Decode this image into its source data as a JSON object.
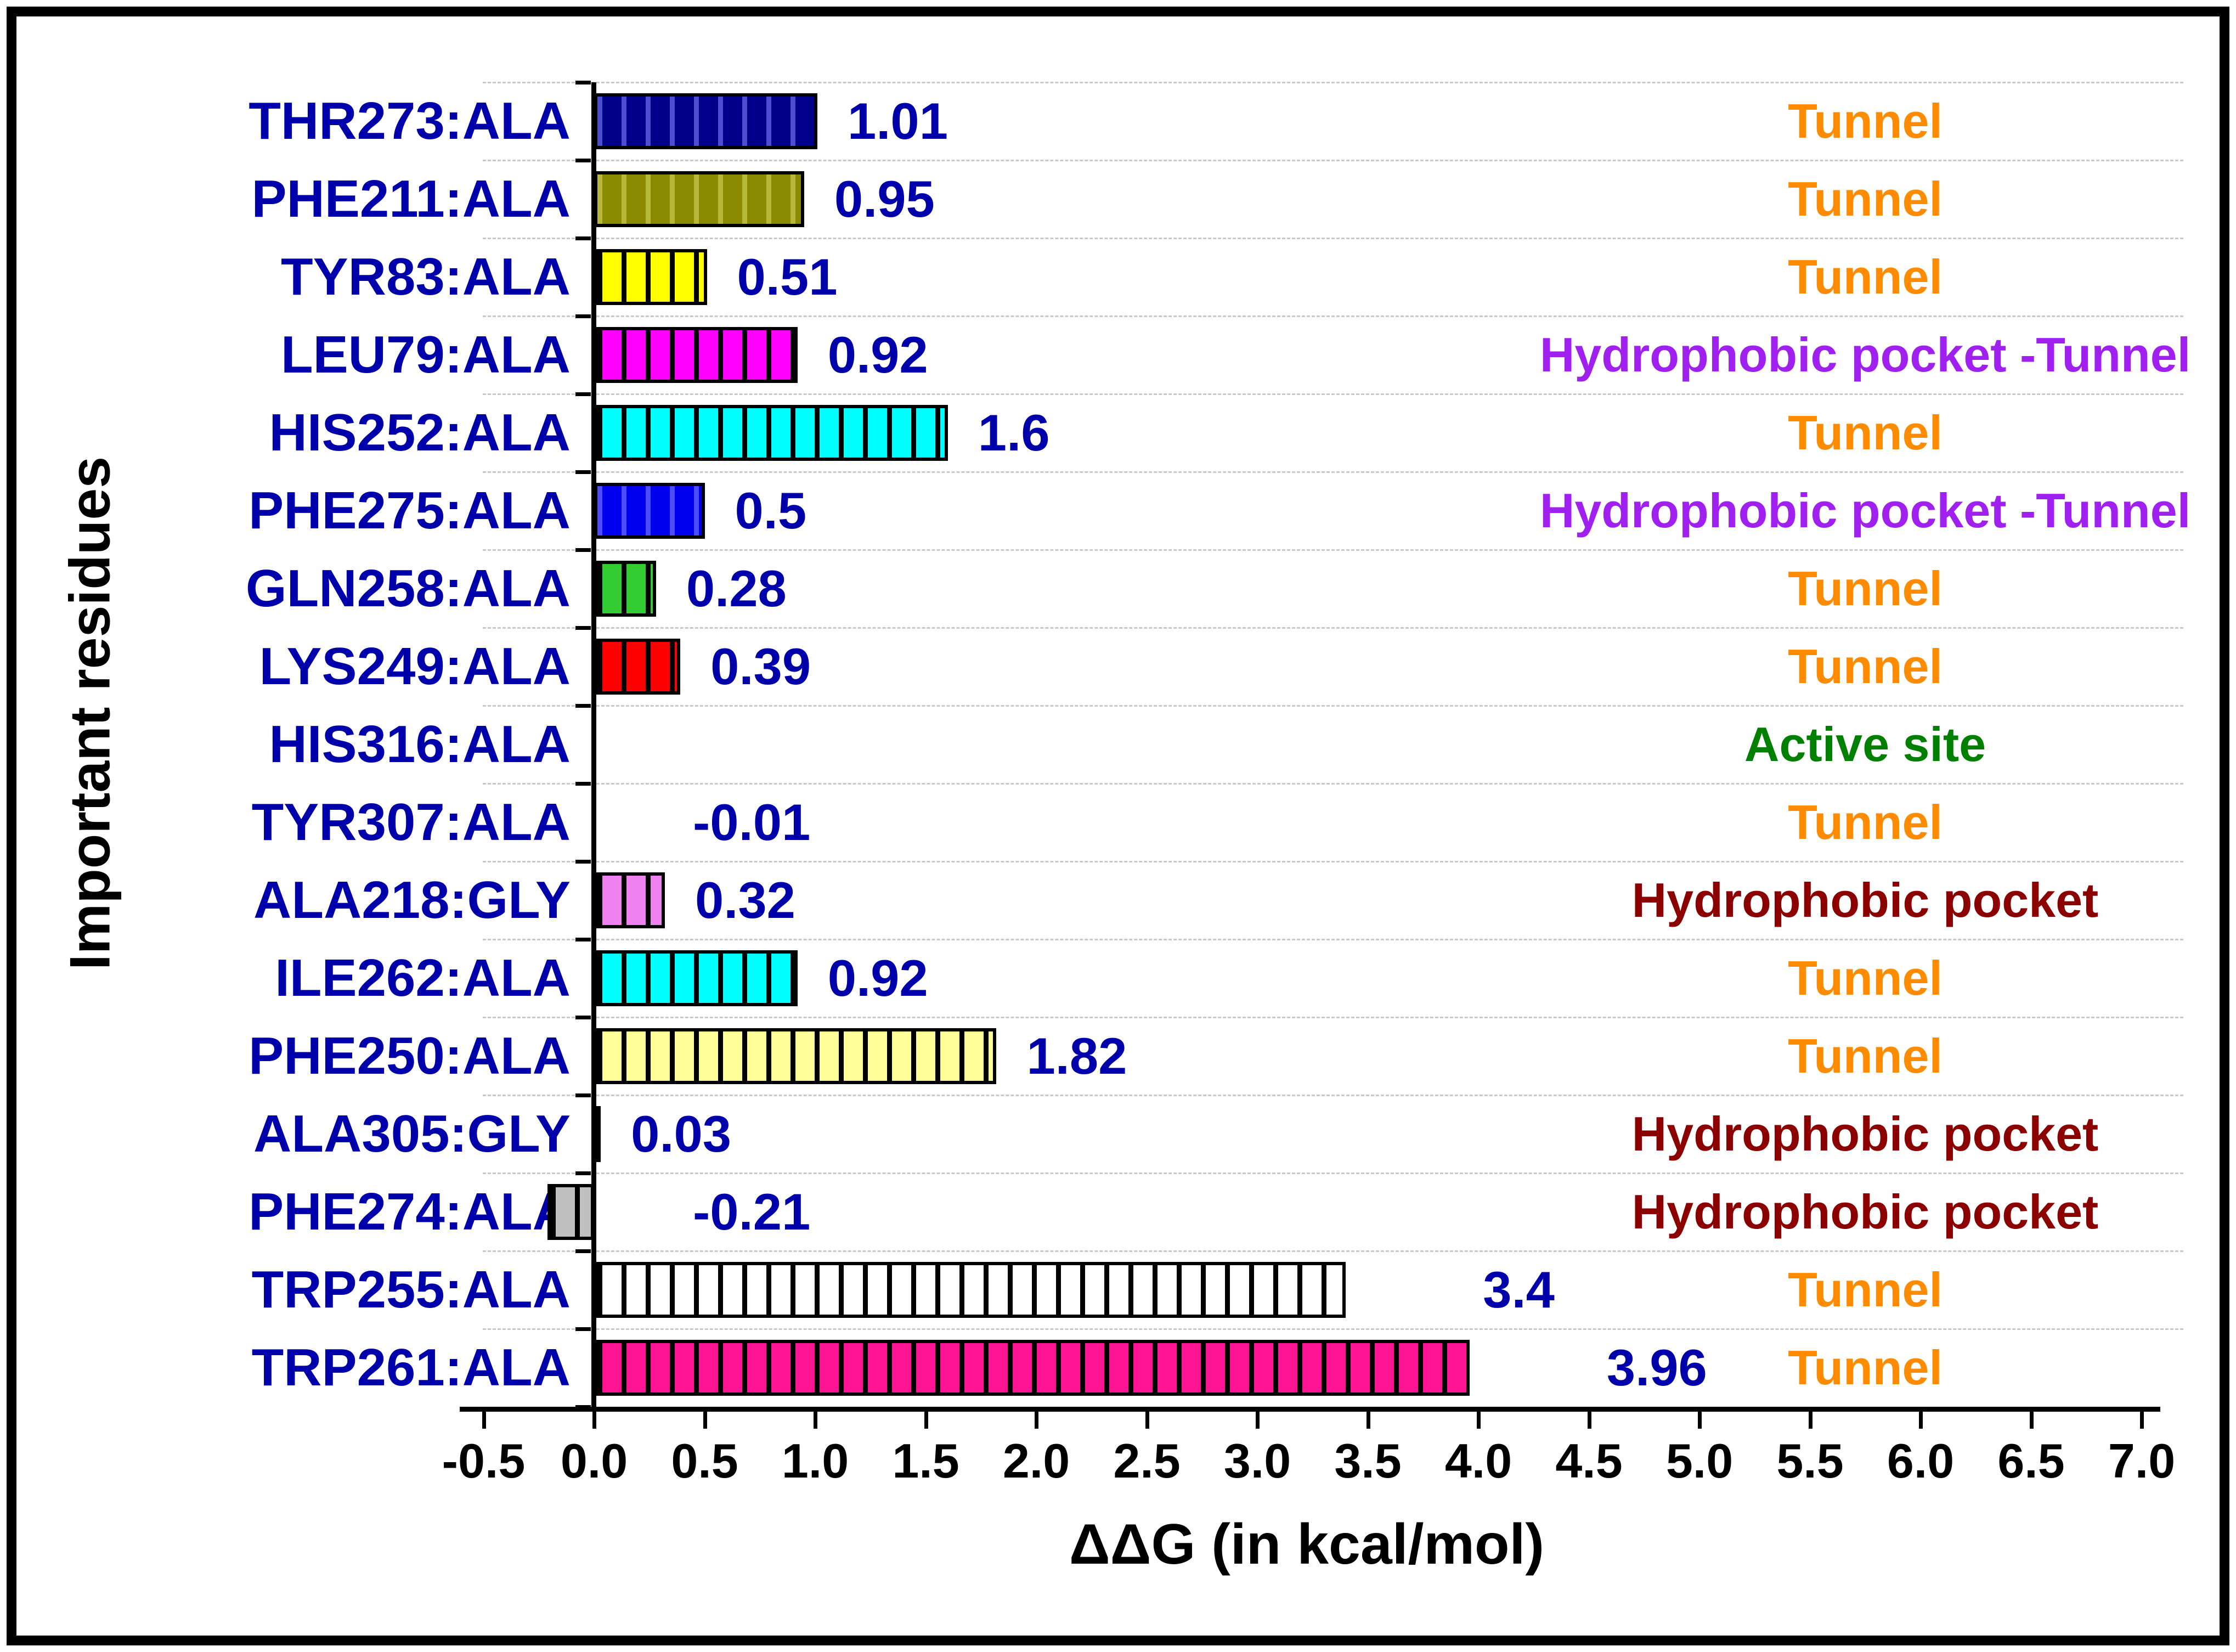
{
  "chart_data": {
    "type": "bar",
    "orientation": "horizontal",
    "title": "",
    "xlabel": "ΔΔG (in kcal/mol)",
    "ylabel": "Important residues",
    "xlim": [
      -0.5,
      7.0
    ],
    "grid": "horizontal-dashed",
    "x_tick_values": [
      -0.5,
      0.0,
      0.5,
      1.0,
      1.5,
      2.0,
      2.5,
      3.0,
      3.5,
      4.0,
      4.5,
      5.0,
      5.5,
      6.0,
      6.5,
      7.0
    ],
    "x_tick_labels": [
      "-0.5",
      "0.0",
      "0.5",
      "1.0",
      "1.5",
      "2.0",
      "2.5",
      "3.0",
      "3.5",
      "4.0",
      "4.5",
      "5.0",
      "5.5",
      "6.0",
      "6.5",
      "7.0"
    ],
    "label_color": "#0000AA",
    "category_colors": {
      "Tunnel": "#FF8C00",
      "Hydrophobic pocket -Tunnel": "#A020F0",
      "Active site": "#008000",
      "Hydrophobic pocket": "#8B0000"
    },
    "rows": [
      {
        "residue": "THR273:ALA",
        "value": 1.01,
        "value_label": "1.01",
        "bar_color": "#00008B",
        "stripe_color": "#4d4dd0",
        "category": "Tunnel"
      },
      {
        "residue": "PHE211:ALA",
        "value": 0.95,
        "value_label": "0.95",
        "bar_color": "#8B8B00",
        "stripe_color": "#b8b83a",
        "category": "Tunnel"
      },
      {
        "residue": "TYR83:ALA",
        "value": 0.51,
        "value_label": "0.51",
        "bar_color": "#FFFF00",
        "stripe_color": "#000000",
        "category": "Tunnel"
      },
      {
        "residue": "LEU79:ALA",
        "value": 0.92,
        "value_label": "0.92",
        "bar_color": "#FF00FF",
        "stripe_color": "#000000",
        "category": "Hydrophobic pocket -Tunnel"
      },
      {
        "residue": "HIS252:ALA",
        "value": 1.6,
        "value_label": "1.6",
        "bar_color": "#00FFFF",
        "stripe_color": "#000000",
        "category": "Tunnel"
      },
      {
        "residue": "PHE275:ALA",
        "value": 0.5,
        "value_label": "0.5",
        "bar_color": "#0000EE",
        "stripe_color": "#4d4dff",
        "category": "Hydrophobic pocket -Tunnel"
      },
      {
        "residue": "GLN258:ALA",
        "value": 0.28,
        "value_label": "0.28",
        "bar_color": "#33CC33",
        "stripe_color": "#000000",
        "category": "Tunnel"
      },
      {
        "residue": "LYS249:ALA",
        "value": 0.39,
        "value_label": "0.39",
        "bar_color": "#FF0000",
        "stripe_color": "#000000",
        "category": "Tunnel"
      },
      {
        "residue": "HIS316:ALA",
        "value": null,
        "value_label": null,
        "bar_color": null,
        "stripe_color": null,
        "category": "Active site"
      },
      {
        "residue": "TYR307:ALA",
        "value": -0.01,
        "value_label": "-0.01",
        "bar_color": "#000000",
        "stripe_color": null,
        "category": "Tunnel"
      },
      {
        "residue": "ALA218:GLY",
        "value": 0.32,
        "value_label": "0.32",
        "bar_color": "#EE82EE",
        "stripe_color": "#000000",
        "category": "Hydrophobic pocket"
      },
      {
        "residue": "ILE262:ALA",
        "value": 0.92,
        "value_label": "0.92",
        "bar_color": "#00FFFF",
        "stripe_color": "#000000",
        "category": "Tunnel"
      },
      {
        "residue": "PHE250:ALA",
        "value": 1.82,
        "value_label": "1.82",
        "bar_color": "#FFFF99",
        "stripe_color": "#000000",
        "category": "Tunnel"
      },
      {
        "residue": "ALA305:GLY",
        "value": 0.03,
        "value_label": "0.03",
        "bar_color": "#000000",
        "stripe_color": null,
        "category": "Hydrophobic pocket"
      },
      {
        "residue": "PHE274:ALA",
        "value": -0.21,
        "value_label": "-0.21",
        "bar_color": "#C0C0C0",
        "stripe_color": "#000000",
        "category": "Hydrophobic pocket"
      },
      {
        "residue": "TRP255:ALA",
        "value": 3.4,
        "value_label": "3.4",
        "bar_color": "#FFFFFF",
        "stripe_color": "#000000",
        "category": "Tunnel"
      },
      {
        "residue": "TRP261:ALA",
        "value": 3.96,
        "value_label": "3.96",
        "bar_color": "#FF1493",
        "stripe_color": "#000000",
        "category": "Tunnel"
      }
    ]
  }
}
